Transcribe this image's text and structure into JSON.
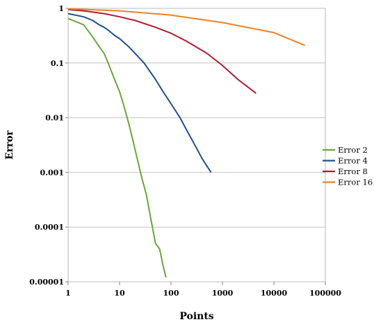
{
  "chart_data": {
    "type": "line",
    "xlabel": "Points",
    "ylabel": "Error",
    "x_scale": "log",
    "y_scale": "log",
    "xlim": [
      1,
      100000
    ],
    "ylim": [
      1e-05,
      1
    ],
    "x_ticks": [
      "1",
      "10",
      "100",
      "1000",
      "10000",
      "100000"
    ],
    "y_ticks": [
      "1",
      "0.1",
      "0.01",
      "0.001",
      "0.0001",
      "0.00001"
    ],
    "grid": "horizontal",
    "legend_position": "right",
    "series": [
      {
        "name": "Error 2",
        "color": "#6aa63a",
        "x": [
          1,
          2,
          3,
          4,
          5,
          6,
          8,
          10,
          12,
          15,
          18,
          22,
          27,
          33,
          40,
          50,
          60,
          70,
          80
        ],
        "y": [
          0.65,
          0.5,
          0.3,
          0.2,
          0.15,
          0.1,
          0.05,
          0.03,
          0.017,
          0.008,
          0.004,
          0.0018,
          0.0008,
          0.0004,
          0.00015,
          5e-05,
          4e-05,
          2e-05,
          1.2e-05
        ]
      },
      {
        "name": "Error 4",
        "color": "#1f4e8c",
        "x": [
          1,
          2,
          3,
          4,
          5,
          6,
          8,
          10,
          15,
          20,
          30,
          50,
          70,
          100,
          150,
          200,
          300,
          400,
          600
        ],
        "y": [
          0.8,
          0.7,
          0.6,
          0.5,
          0.45,
          0.4,
          0.32,
          0.28,
          0.2,
          0.15,
          0.1,
          0.05,
          0.03,
          0.018,
          0.01,
          0.006,
          0.003,
          0.0018,
          0.001
        ]
      },
      {
        "name": "Error 8",
        "color": "#b01c2e",
        "x": [
          1,
          2,
          5,
          10,
          20,
          50,
          100,
          200,
          500,
          1000,
          2000,
          4500
        ],
        "y": [
          0.95,
          0.9,
          0.8,
          0.7,
          0.6,
          0.45,
          0.35,
          0.25,
          0.15,
          0.09,
          0.05,
          0.028
        ]
      },
      {
        "name": "Error 16",
        "color": "#f07f22",
        "x": [
          1,
          10,
          100,
          1000,
          10000,
          40000
        ],
        "y": [
          0.98,
          0.9,
          0.75,
          0.55,
          0.36,
          0.21
        ]
      }
    ]
  }
}
